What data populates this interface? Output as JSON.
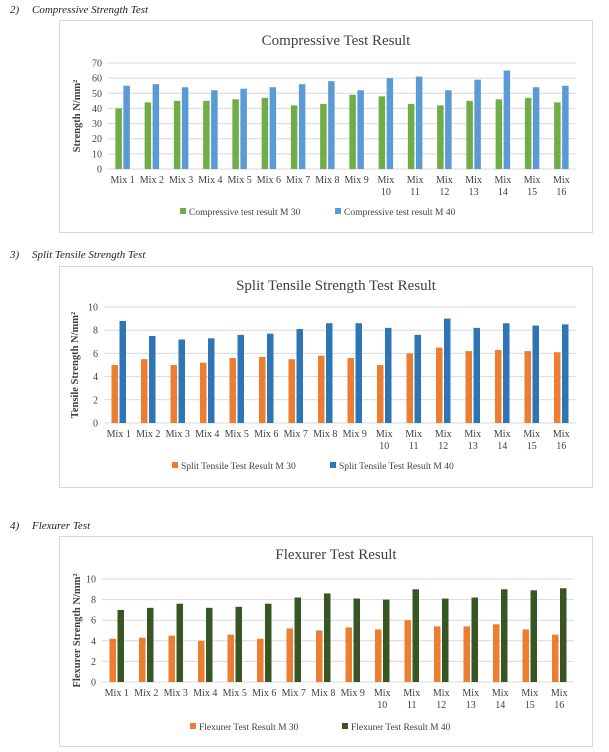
{
  "sections": [
    {
      "number": "2)",
      "label": "Compressive Strength Test"
    },
    {
      "number": "3)",
      "label": "Split Tensile Strength Test"
    },
    {
      "number": "4)",
      "label": "Flexurer Test"
    }
  ],
  "chart_data": [
    {
      "type": "bar",
      "title": "Compressive Test Result",
      "xlabel": "",
      "ylabel": "Strength N/mm²",
      "ylim": [
        0,
        70
      ],
      "yticks": [
        0,
        10,
        20,
        30,
        40,
        50,
        60,
        70
      ],
      "grid": true,
      "legend": "bottom",
      "categories": [
        "Mix 1",
        "Mix 2",
        "Mix 3",
        "Mix 4",
        "Mix 5",
        "Mix 6",
        "Mix 7",
        "Mix 8",
        "Mix 9",
        "Mix 10",
        "Mix 11",
        "Mix 12",
        "Mix 13",
        "Mix 14",
        "Mix 15",
        "Mix 16"
      ],
      "series": [
        {
          "name": "Compressive test result  M 30",
          "color": "#70ad47",
          "values": [
            40,
            44,
            45,
            45,
            46,
            47,
            42,
            43,
            49,
            48,
            43,
            42,
            45,
            46,
            47,
            44
          ]
        },
        {
          "name": "Compressive test result  M 40",
          "color": "#5b9bd5",
          "values": [
            55,
            56,
            54,
            52,
            53,
            54,
            56,
            58,
            52,
            60,
            61,
            52,
            59,
            65,
            54,
            55
          ]
        }
      ]
    },
    {
      "type": "bar",
      "title": "Split Tensile Strength Test Result",
      "xlabel": "",
      "ylabel": "Tensile Strength N/mm²",
      "ylim": [
        0,
        10
      ],
      "yticks": [
        0,
        2,
        4,
        6,
        8,
        10
      ],
      "grid": true,
      "legend": "bottom",
      "categories": [
        "Mix 1",
        "Mix 2",
        "Mix 3",
        "Mix 4",
        "Mix 5",
        "Mix 6",
        "Mix 7",
        "Mix 8",
        "Mix 9",
        "Mix 10",
        "Mix 11",
        "Mix 12",
        "Mix 13",
        "Mix 14",
        "Mix 15",
        "Mix 16"
      ],
      "series": [
        {
          "name": "Split Tensile Test Result M 30",
          "color": "#ed7d31",
          "values": [
            5.0,
            5.5,
            5.0,
            5.2,
            5.6,
            5.7,
            5.5,
            5.8,
            5.6,
            5.0,
            6.0,
            6.5,
            6.2,
            6.3,
            6.2,
            6.1
          ]
        },
        {
          "name": "Split Tensile Test Result  M 40",
          "color": "#2e75b6",
          "values": [
            8.8,
            7.5,
            7.2,
            7.3,
            7.6,
            7.7,
            8.1,
            8.6,
            8.6,
            8.2,
            7.6,
            9.0,
            8.2,
            8.6,
            8.4,
            8.5
          ]
        }
      ]
    },
    {
      "type": "bar",
      "title": "Flexurer Test Result",
      "xlabel": "",
      "ylabel": "Flexurer Strength N/mm²",
      "ylim": [
        0,
        10
      ],
      "yticks": [
        0,
        2,
        4,
        6,
        8,
        10
      ],
      "grid": true,
      "legend": "bottom",
      "categories": [
        "Mix 1",
        "Mix 2",
        "Mix 3",
        "Mix 4",
        "Mix 5",
        "Mix 6",
        "Mix 7",
        "Mix 8",
        "Mix 9",
        "Mix 10",
        "Mix 11",
        "Mix 12",
        "Mix 13",
        "Mix 14",
        "Mix 15",
        "Mix 16"
      ],
      "series": [
        {
          "name": "Flexurer Test Result  M 30",
          "color": "#ed7d31",
          "values": [
            4.2,
            4.3,
            4.5,
            4.0,
            4.6,
            4.2,
            5.2,
            5.0,
            5.3,
            5.1,
            6.0,
            5.4,
            5.4,
            5.6,
            5.1,
            4.6
          ]
        },
        {
          "name": "Flexurer Test Result  M 40",
          "color": "#375623",
          "values": [
            7.0,
            7.2,
            7.6,
            7.2,
            7.3,
            7.6,
            8.2,
            8.6,
            8.1,
            8.0,
            9.0,
            8.1,
            8.2,
            9.0,
            8.9,
            9.1
          ]
        }
      ]
    }
  ]
}
